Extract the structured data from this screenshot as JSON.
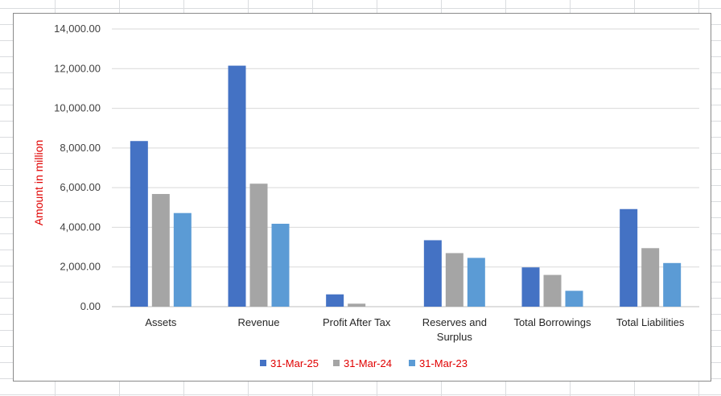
{
  "chart_data": {
    "type": "bar",
    "title": "",
    "xlabel": "",
    "ylabel": "Amount in million",
    "ylim": [
      0,
      14000
    ],
    "yticks": [
      "0.00",
      "2,000.00",
      "4,000.00",
      "6,000.00",
      "8,000.00",
      "10,000.00",
      "12,000.00",
      "14,000.00"
    ],
    "ytick_values": [
      0,
      2000,
      4000,
      6000,
      8000,
      10000,
      12000,
      14000
    ],
    "categories": [
      [
        "Assets"
      ],
      [
        "Revenue"
      ],
      [
        "Profit After Tax"
      ],
      [
        "Reserves and",
        "Surplus"
      ],
      [
        "Total Borrowings"
      ],
      [
        "Total Liabilities"
      ]
    ],
    "series": [
      {
        "name": "31-Mar-25",
        "color": "#4472c4",
        "values": [
          8350,
          12150,
          620,
          3350,
          1980,
          4920
        ]
      },
      {
        "name": "31-Mar-24",
        "color": "#a5a5a5",
        "values": [
          5680,
          6200,
          150,
          2700,
          1600,
          2950
        ]
      },
      {
        "name": "31-Mar-23",
        "color": "#5b9bd5",
        "values": [
          4720,
          4180,
          0,
          2460,
          800,
          2200
        ]
      }
    ],
    "grid": true,
    "legend": "bottom"
  }
}
